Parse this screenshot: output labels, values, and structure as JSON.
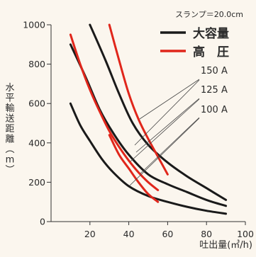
{
  "chart_data": {
    "type": "line",
    "title": "",
    "note": "スランプ＝20.0cm",
    "xlabel": "吐出量(㎥/h)",
    "ylabel": "水平輸送距離(m)",
    "xlim": [
      0,
      100
    ],
    "ylim": [
      0,
      1000
    ],
    "xticks": [
      20,
      40,
      60,
      80,
      100
    ],
    "yticks": [
      0,
      200,
      400,
      600,
      800,
      1000
    ],
    "legend": [
      {
        "label": "大容量",
        "color": "#1a1a1a"
      },
      {
        "label": "高　圧",
        "color": "#e0261b"
      }
    ],
    "pipe_labels": [
      "150 A",
      "125 A",
      "100 A"
    ],
    "series": [
      {
        "group": "大容量",
        "pipe": "150 A",
        "color": "#1a1a1a",
        "x": [
          20,
          28,
          35,
          42,
          50,
          60,
          70,
          80,
          90
        ],
        "y": [
          1000,
          820,
          650,
          500,
          390,
          300,
          230,
          170,
          110
        ]
      },
      {
        "group": "大容量",
        "pipe": "125 A",
        "color": "#1a1a1a",
        "x": [
          10,
          18,
          25,
          32,
          40,
          50,
          60,
          70,
          80,
          90
        ],
        "y": [
          900,
          730,
          570,
          450,
          340,
          240,
          190,
          150,
          110,
          80
        ]
      },
      {
        "group": "大容量",
        "pipe": "100 A",
        "color": "#1a1a1a",
        "x": [
          10,
          15,
          20,
          26,
          32,
          40,
          50,
          60,
          70,
          80,
          90
        ],
        "y": [
          600,
          490,
          410,
          320,
          250,
          180,
          130,
          100,
          75,
          55,
          40
        ]
      },
      {
        "group": "高圧",
        "pipe": "150 A",
        "color": "#e0261b",
        "x": [
          30,
          35,
          40,
          45,
          50,
          55,
          60
        ],
        "y": [
          1000,
          820,
          650,
          520,
          420,
          330,
          240
        ]
      },
      {
        "group": "高圧",
        "pipe": "125 A",
        "color": "#e0261b",
        "x": [
          10,
          15,
          20,
          25,
          30,
          35,
          40,
          45,
          50,
          55
        ],
        "y": [
          950,
          800,
          670,
          560,
          460,
          380,
          310,
          250,
          200,
          160
        ]
      },
      {
        "group": "高圧",
        "pipe": "100 A",
        "color": "#e0261b",
        "x": [
          30,
          35,
          40,
          45,
          50,
          55
        ],
        "y": [
          440,
          340,
          270,
          200,
          140,
          100
        ]
      }
    ]
  }
}
